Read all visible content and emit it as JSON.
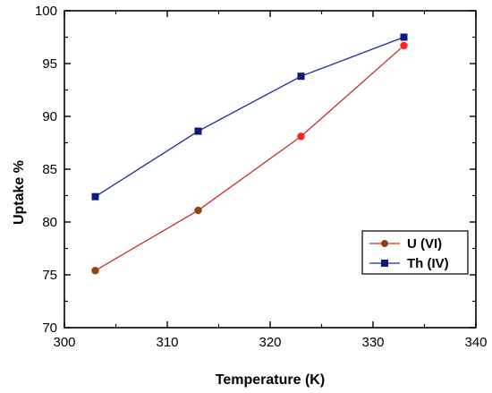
{
  "chart_data": {
    "type": "line",
    "title": "",
    "xlabel": "Temperature (K)",
    "ylabel": "Uptake %",
    "xlim": [
      300,
      340
    ],
    "ylim": [
      70,
      100
    ],
    "x_ticks": [
      300,
      310,
      320,
      330,
      340
    ],
    "y_ticks": [
      70,
      75,
      80,
      85,
      90,
      95,
      100
    ],
    "grid": false,
    "legend_position": "right",
    "series": [
      {
        "name": "U (VI)",
        "x": [
          303,
          313,
          323,
          333
        ],
        "y": [
          75.4,
          81.1,
          88.1,
          96.7
        ],
        "line_color": "#cc2b2b",
        "marker": "circle",
        "marker_colors": [
          "#8b4513",
          "#8b4513",
          "#ff2020",
          "#ff2020"
        ]
      },
      {
        "name": "Th (IV)",
        "x": [
          303,
          313,
          323,
          333
        ],
        "y": [
          82.4,
          88.6,
          93.8,
          97.5
        ],
        "line_color": "#1a2a9a",
        "marker": "square",
        "marker_colors": [
          "#0a1a80",
          "#0a1a80",
          "#0a1a80",
          "#0a1a80"
        ]
      }
    ]
  }
}
